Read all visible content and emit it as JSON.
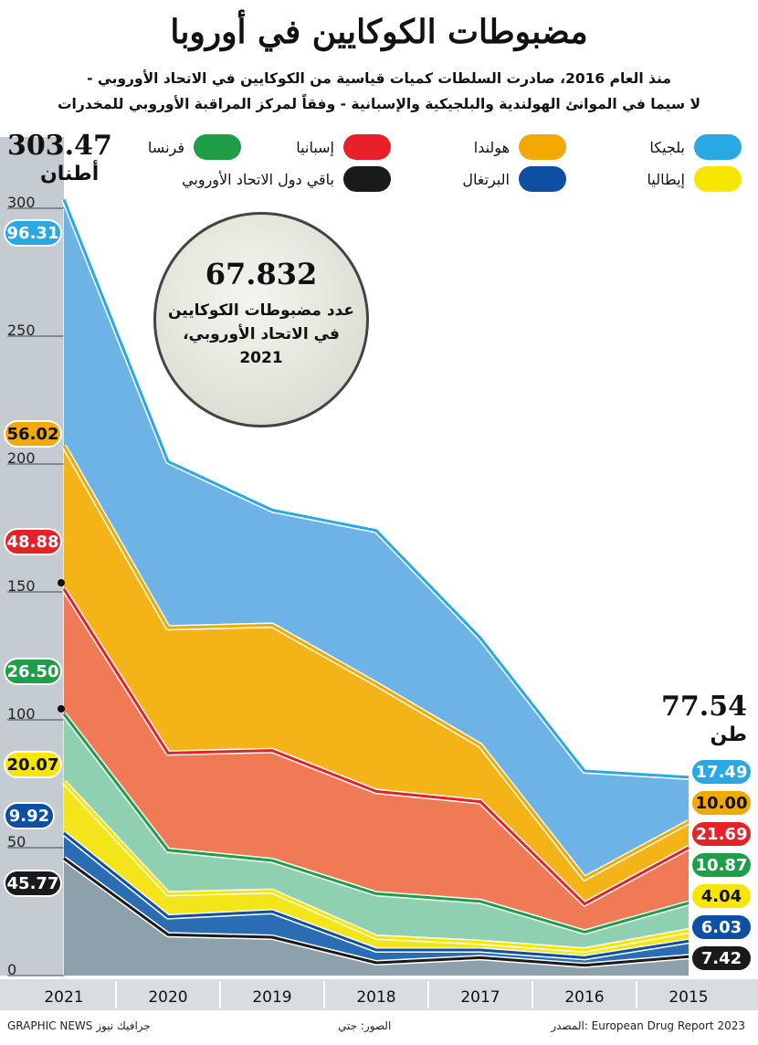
{
  "header": {
    "title": "مضبوطات الكوكايين في أوروبا",
    "subtitle_line1": "منذ العام 2016، صادرت السلطات كميات قياسية من الكوكايين في الاتحاد الأوروبي -",
    "subtitle_line2": "لا سيما في الموانئ الهولندية والبلجيكية والإسبانية - وفقاً لمركز المراقبة الأوروبي للمخدرات"
  },
  "legend": {
    "belgium": "بلجيكا",
    "netherlands": "هولندا",
    "spain": "إسبانيا",
    "france": "فرنسا",
    "italy": "إيطاليا",
    "portugal": "البرتغال",
    "rest": "باقي دول الاتحاد الأوروبي"
  },
  "totals": {
    "start_value": "303.47",
    "start_unit": "أطنان",
    "end_value": "77.54",
    "end_unit": "طن"
  },
  "callout": {
    "number": "67.832",
    "line1": "عدد مضبوطات الكوكايين",
    "line2": "في الاتحاد الأوروبي،",
    "line3": "2021"
  },
  "footer": {
    "source": "المصدر: European Drug Report 2023",
    "photos": "الصور: جتي",
    "credit": "GRAPHIC NEWS جرافيك نيوز"
  },
  "colors": {
    "belgium": "#6db3e6",
    "netherlands": "#f4b418",
    "spain": "#ef7a55",
    "france": "#8fd0b1",
    "italy": "#f4e51a",
    "portugal": "#2b6db5",
    "rest": "#8da1ac",
    "belgium_line": "#29a9e3",
    "netherlands_line": "#f2a900",
    "spain_line": "#e8202a",
    "france_line": "#1f9e48",
    "italy_line": "#f7e600",
    "portugal_line": "#0d4fa2",
    "rest_line": "#1a1a1a",
    "left_band": "#c4ccd2"
  },
  "chart_data": {
    "type": "area",
    "stacked": true,
    "x": [
      "2021",
      "2020",
      "2019",
      "2018",
      "2017",
      "2016",
      "2015"
    ],
    "ylim": [
      0,
      300
    ],
    "yticks": [
      0,
      50,
      100,
      150,
      200,
      250,
      300
    ],
    "series": [
      {
        "key": "rest",
        "name": "باقي دول الاتحاد الأوروبي",
        "values": [
          45.77,
          16,
          15,
          5,
          7,
          4,
          7.42
        ]
      },
      {
        "key": "portugal",
        "name": "البرتغال",
        "values": [
          9.92,
          7,
          10,
          5,
          3,
          3,
          6.03
        ]
      },
      {
        "key": "italy",
        "name": "إيطاليا",
        "values": [
          20.07,
          9,
          8,
          5,
          3,
          3,
          4.04
        ]
      },
      {
        "key": "france",
        "name": "فرنسا",
        "values": [
          26.5,
          17,
          12,
          17,
          16,
          7,
          10.87
        ]
      },
      {
        "key": "spain",
        "name": "إسبانيا",
        "values": [
          48.88,
          38,
          43,
          40,
          39,
          11,
          21.69
        ]
      },
      {
        "key": "netherlands",
        "name": "هولندا",
        "values": [
          56.02,
          49,
          49,
          42,
          22,
          10,
          10.0
        ]
      },
      {
        "key": "belgium",
        "name": "بلجيكا",
        "values": [
          96.31,
          65,
          45,
          60,
          42,
          42,
          17.49
        ]
      }
    ],
    "labels_2021": {
      "belgium": "96.31",
      "netherlands": "56.02",
      "spain": "48.88",
      "france": "26.50",
      "italy": "20.07",
      "portugal": "9.92",
      "rest": "45.77"
    },
    "labels_2015": {
      "belgium": "17.49",
      "netherlands": "10.00",
      "spain": "21.69",
      "france": "10.87",
      "italy": "4.04",
      "portugal": "6.03",
      "rest": "7.42"
    },
    "total_2021": 303.47,
    "total_2015": 77.54
  }
}
